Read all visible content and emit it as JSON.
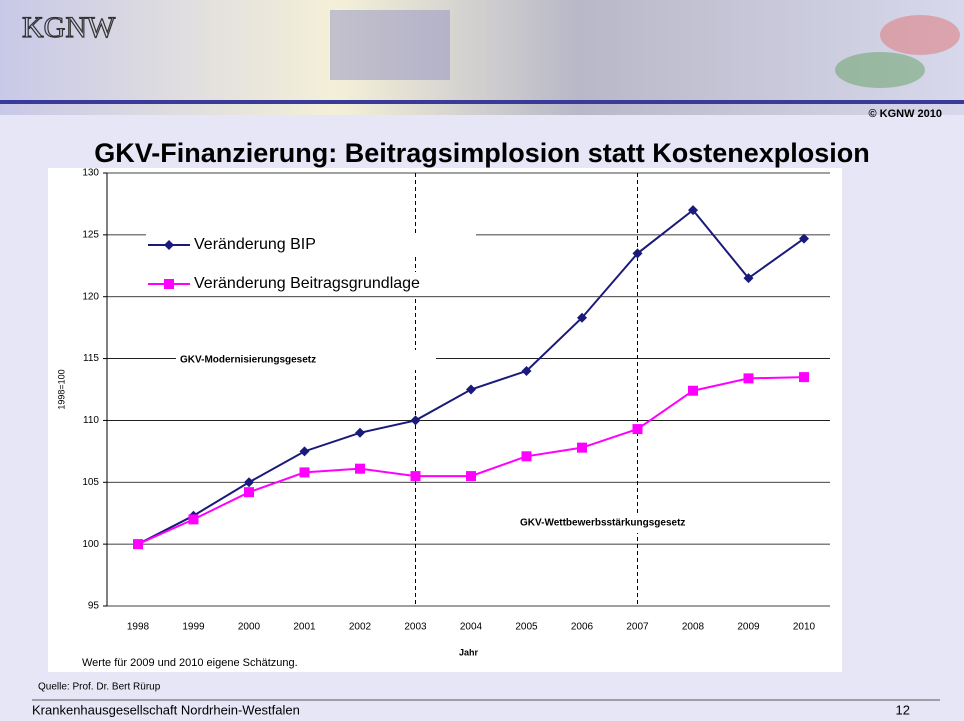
{
  "header": {
    "logo": "KGNW",
    "copyright": "© KGNW 2010"
  },
  "slide_title": "GKV-Finanzierung: Beitragsimplosion statt Kostenexplosion",
  "chart_data": {
    "type": "line",
    "y_label": "1998=100",
    "x_label": "Jahr",
    "note": "Werte für 2009 und 2010 eigene Schätzung.",
    "categories": [
      "1998",
      "1999",
      "2000",
      "2001",
      "2002",
      "2003",
      "2004",
      "2005",
      "2006",
      "2007",
      "2008",
      "2009",
      "2010"
    ],
    "series": [
      {
        "name": "Veränderung BIP",
        "color": "#1a1a7a",
        "marker": "diamond",
        "values": [
          100,
          102.3,
          105,
          107.5,
          109,
          110,
          112.5,
          114,
          118.3,
          123.5,
          127,
          121.5,
          124.7
        ]
      },
      {
        "name": "Veränderung Beitragsgrundlage",
        "color": "#ff00ff",
        "marker": "square",
        "values": [
          100,
          102,
          104.2,
          105.8,
          106.1,
          105.5,
          105.5,
          107.1,
          107.8,
          109.3,
          112.4,
          113.4,
          113.5
        ]
      }
    ],
    "ylim": [
      95,
      130
    ],
    "yticks": [
      95,
      100,
      105,
      110,
      115,
      120,
      125,
      130
    ],
    "grid": true,
    "legend": "upper left",
    "annotations": [
      {
        "x": "2003",
        "label": "GKV-Modernisierungsgesetz"
      },
      {
        "x": "2007",
        "label": "GKV-Wettbewerbsstärkungsgesetz"
      }
    ]
  },
  "source": "Quelle: Prof. Dr. Bert Rürup",
  "footer": {
    "organization": "Krankenhausgesellschaft Nordrhein-Westfalen",
    "page": "12"
  }
}
